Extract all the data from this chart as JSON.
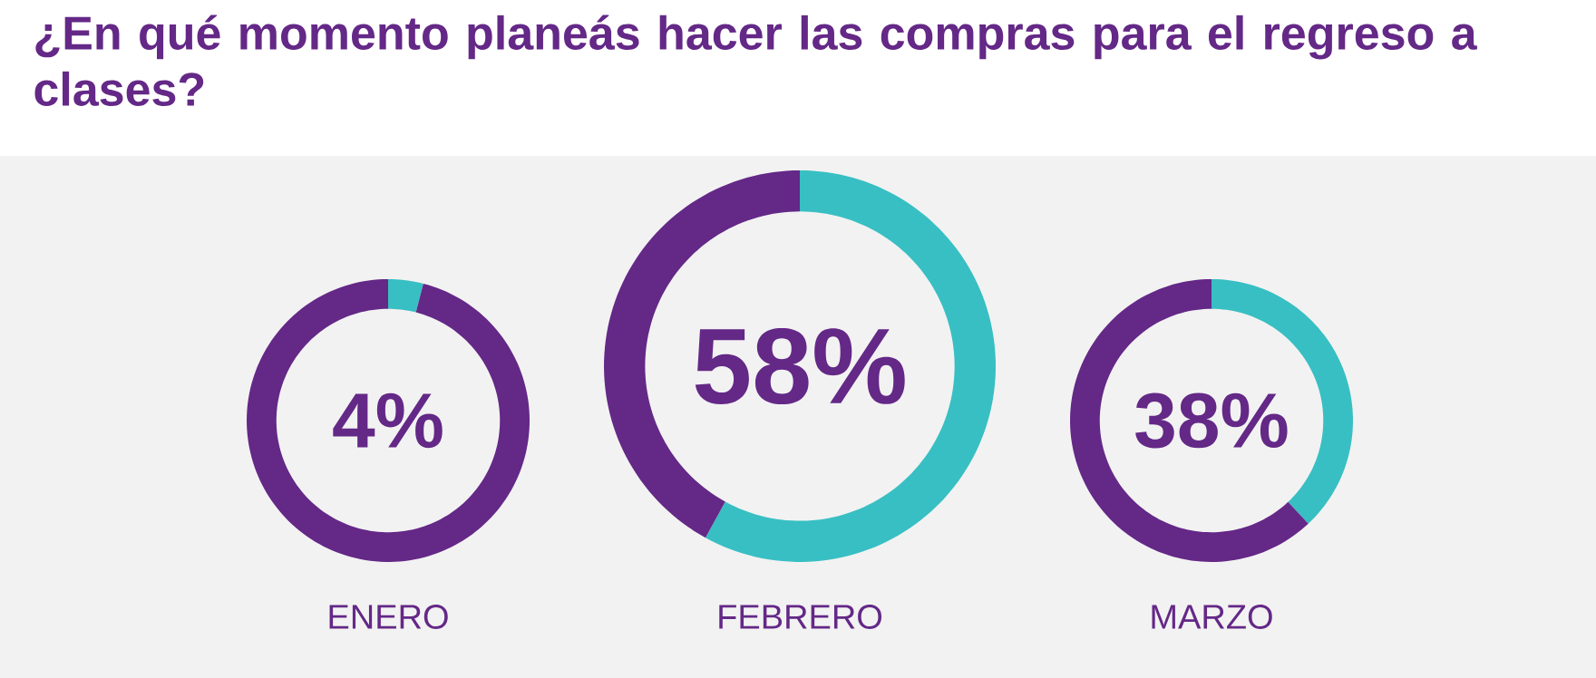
{
  "chart_data": [
    {
      "type": "donut",
      "title": "¿En qué momento planeás hacer las compras para el regreso a clases?",
      "categories": [
        null,
        null
      ],
      "values": [
        4,
        96
      ],
      "colors": [
        "#38bfc3",
        "#642887"
      ],
      "annotations": [
        "4%"
      ],
      "xlabel": "ENERO"
    },
    {
      "type": "donut",
      "categories": [
        null,
        null
      ],
      "values": [
        58,
        42
      ],
      "colors": [
        "#38bfc3",
        "#642887"
      ],
      "annotations": [
        "58%"
      ],
      "xlabel": "FEBRERO"
    },
    {
      "type": "donut",
      "categories": [
        null,
        null
      ],
      "values": [
        38,
        62
      ],
      "colors": [
        "#38bfc3",
        "#642887"
      ],
      "annotations": [
        "38%"
      ],
      "xlabel": "MARZO"
    }
  ]
}
